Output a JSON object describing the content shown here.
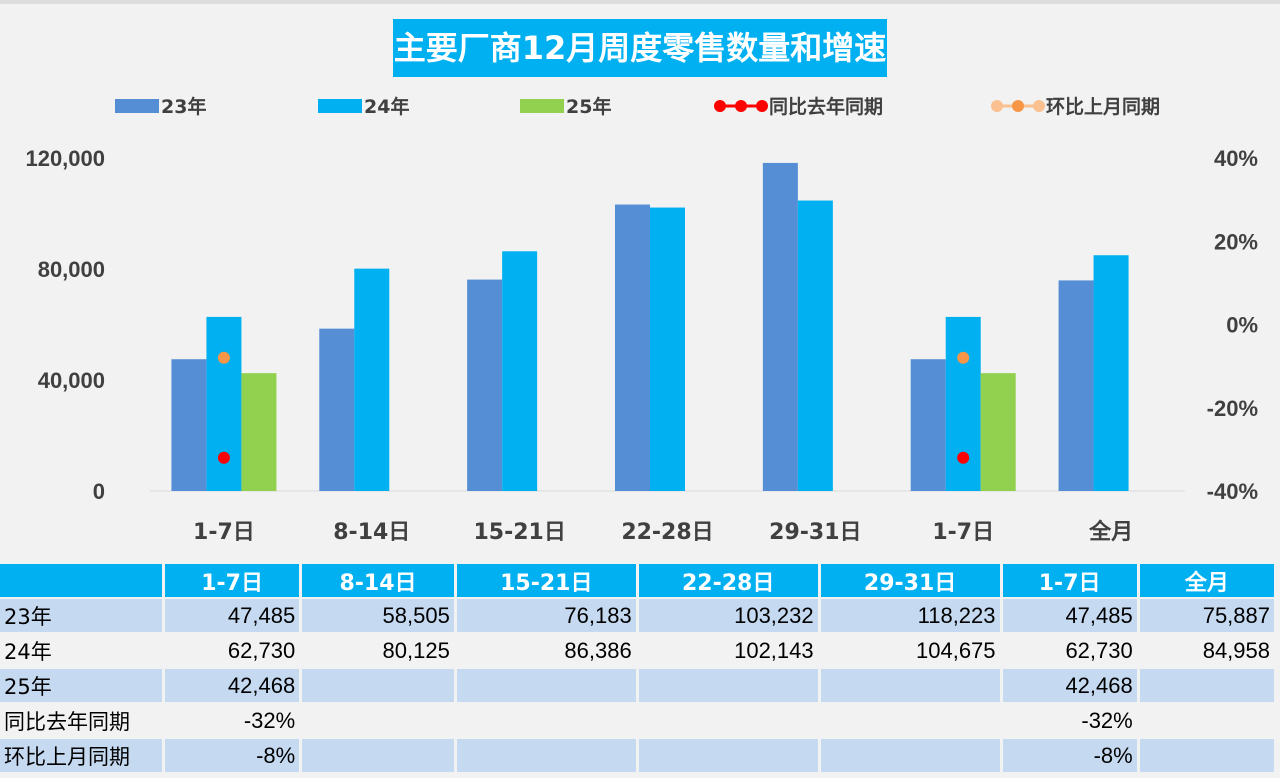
{
  "chart_data": {
    "type": "bar",
    "title": "主要厂商12月周度零售数量和增速",
    "categories": [
      "1-7日",
      "8-14日",
      "15-21日",
      "22-28日",
      "29-31日",
      "1-7日",
      "全月"
    ],
    "series": [
      {
        "name": "23年",
        "type": "bar",
        "color": "#558ed5",
        "values": [
          47485,
          58505,
          76183,
          103232,
          118223,
          47485,
          75887
        ]
      },
      {
        "name": "24年",
        "type": "bar",
        "color": "#00b0f0",
        "values": [
          62730,
          80125,
          86386,
          102143,
          104675,
          62730,
          84958
        ]
      },
      {
        "name": "25年",
        "type": "bar",
        "color": "#92d050",
        "values": [
          42468,
          null,
          null,
          null,
          null,
          42468,
          null
        ]
      },
      {
        "name": "同比去年同期",
        "type": "line",
        "axis": "right",
        "color": "#ff0000",
        "values": [
          -32,
          null,
          null,
          null,
          null,
          -32,
          null
        ]
      },
      {
        "name": "环比上月同期",
        "type": "line",
        "axis": "right",
        "color": "#f79646",
        "values": [
          -8,
          null,
          null,
          null,
          null,
          -8,
          null
        ]
      }
    ],
    "ylim": [
      0,
      120000
    ],
    "yticks": [
      "0",
      "40,000",
      "80,000",
      "120,000"
    ],
    "y2lim": [
      -40,
      40
    ],
    "y2ticks": [
      "-40%",
      "-20%",
      "0%",
      "20%",
      "40%"
    ],
    "legend": "top",
    "grid": false
  },
  "table": {
    "header": [
      "",
      "1-7日",
      "8-14日",
      "15-21日",
      "22-28日",
      "29-31日",
      "1-7日",
      "全月"
    ],
    "rows": [
      [
        "23年",
        "47,485",
        "58,505",
        "76,183",
        "103,232",
        "118,223",
        "47,485",
        "75,887"
      ],
      [
        "24年",
        "62,730",
        "80,125",
        "86,386",
        "102,143",
        "104,675",
        "62,730",
        "84,958"
      ],
      [
        "25年",
        "42,468",
        "",
        "",
        "",
        "",
        "42,468",
        ""
      ],
      [
        "同比去年同期",
        "-32%",
        "",
        "",
        "",
        "",
        "-32%",
        ""
      ],
      [
        "环比上月同期",
        "-8%",
        "",
        "",
        "",
        "",
        "-8%",
        ""
      ]
    ]
  }
}
